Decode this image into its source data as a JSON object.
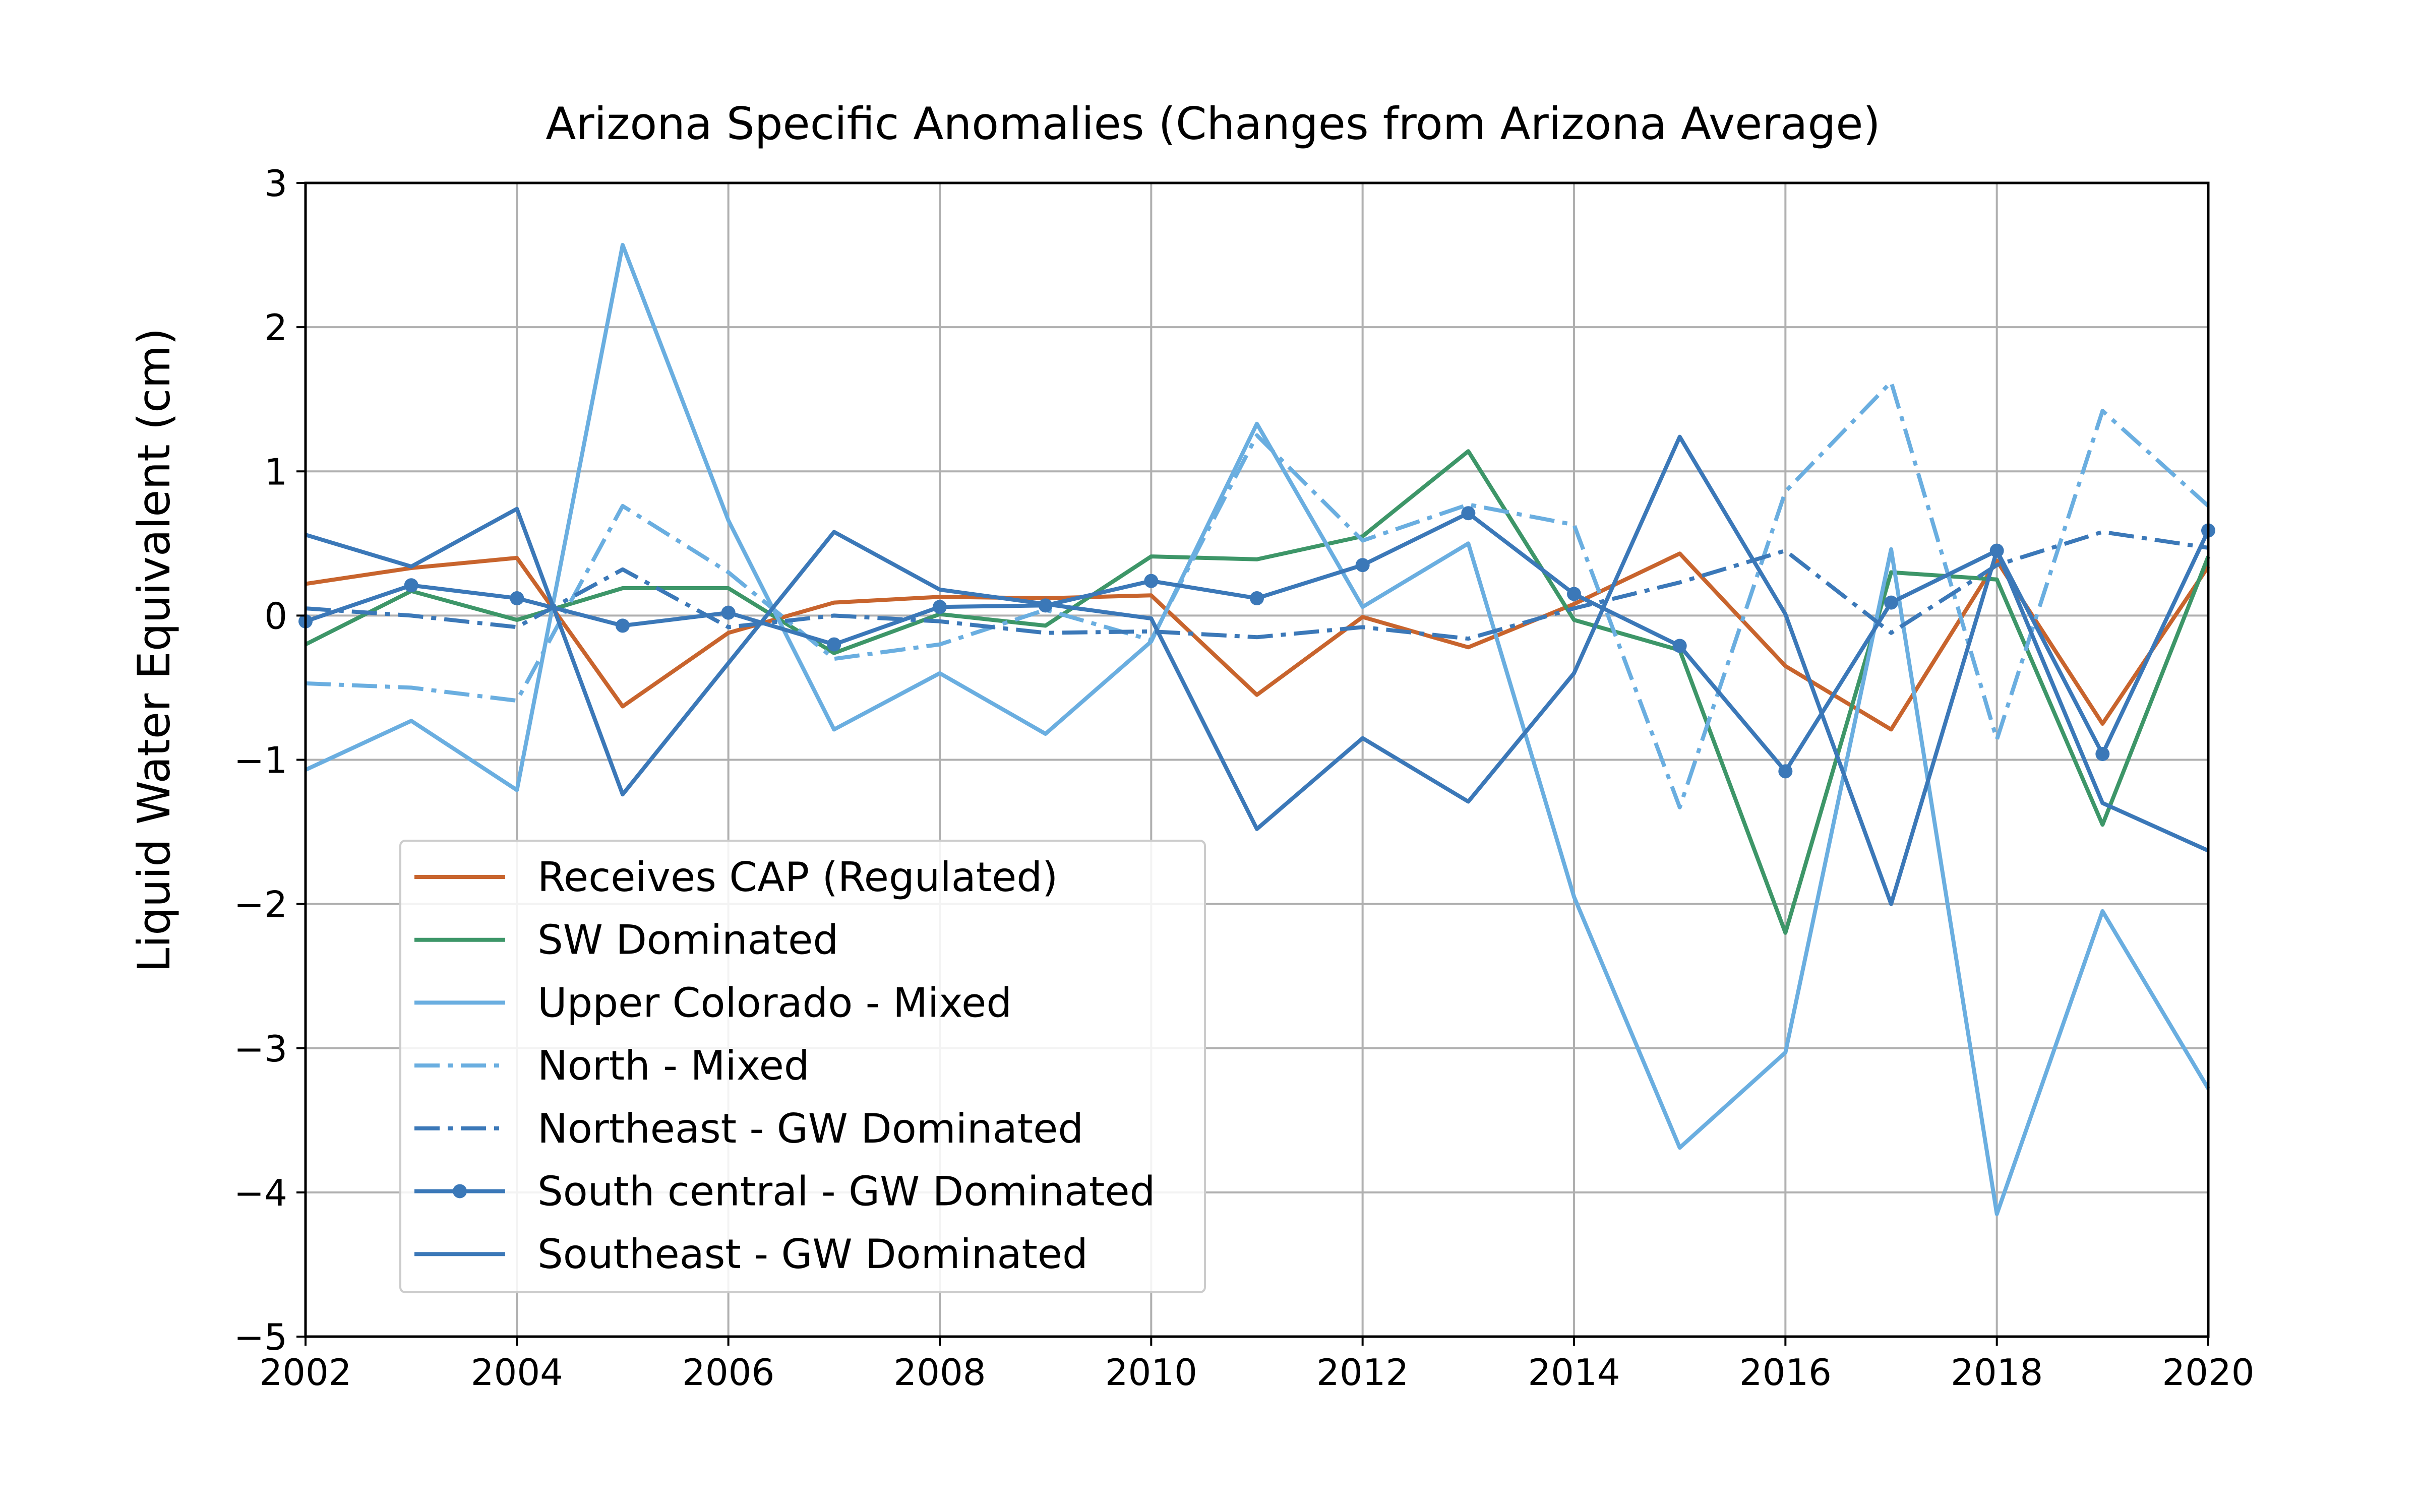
{
  "chart_data": {
    "type": "line",
    "title": "Arizona Specific Anomalies (Changes from Arizona Average)",
    "xlabel": "",
    "ylabel": "Liquid Water Equivalent (cm)",
    "xlim": [
      2002,
      2020
    ],
    "ylim": [
      -5,
      3
    ],
    "xticks": [
      2002,
      2004,
      2006,
      2008,
      2010,
      2012,
      2014,
      2016,
      2018,
      2020
    ],
    "xtick_labels": [
      "2002",
      "2004",
      "2006",
      "2008",
      "2010",
      "2012",
      "2014",
      "2016",
      "2018",
      "2020"
    ],
    "yticks": [
      -5,
      -4,
      -3,
      -2,
      -1,
      0,
      1,
      2,
      3
    ],
    "ytick_labels": [
      "−5",
      "−4",
      "−3",
      "−2",
      "−1",
      "0",
      "1",
      "2",
      "3"
    ],
    "grid": true,
    "legend_position": "lower-left",
    "x": [
      2002,
      2003,
      2004,
      2005,
      2006,
      2007,
      2008,
      2009,
      2010,
      2011,
      2012,
      2013,
      2014,
      2015,
      2016,
      2017,
      2018,
      2019,
      2020
    ],
    "series": [
      {
        "name": "Receives CAP (Regulated)",
        "color": "#c8642d",
        "style": "solid",
        "marker": "none",
        "values": [
          0.22,
          0.33,
          0.4,
          -0.63,
          -0.12,
          0.09,
          0.13,
          0.12,
          0.14,
          -0.55,
          -0.01,
          -0.22,
          0.08,
          0.43,
          -0.35,
          -0.79,
          0.38,
          -0.75,
          0.34
        ]
      },
      {
        "name": "SW Dominated",
        "color": "#3d9668",
        "style": "solid",
        "marker": "none",
        "values": [
          -0.2,
          0.17,
          -0.03,
          0.19,
          0.19,
          -0.26,
          0.01,
          -0.07,
          0.41,
          0.39,
          0.55,
          1.14,
          -0.03,
          -0.24,
          -2.2,
          0.3,
          0.25,
          -1.45,
          0.41
        ]
      },
      {
        "name": "Upper Colorado - Mixed",
        "color": "#6aaee0",
        "style": "solid",
        "marker": "none",
        "values": [
          -1.07,
          -0.73,
          -1.21,
          2.57,
          0.66,
          -0.79,
          -0.4,
          -0.82,
          -0.18,
          1.33,
          0.06,
          0.5,
          -1.95,
          -3.69,
          -3.03,
          0.46,
          -4.15,
          -2.05,
          -3.28
        ]
      },
      {
        "name": "North - Mixed",
        "color": "#6aaee0",
        "style": "dashdot",
        "marker": "none",
        "values": [
          -0.47,
          -0.5,
          -0.59,
          0.76,
          0.3,
          -0.3,
          -0.2,
          0.04,
          -0.17,
          1.25,
          0.52,
          0.77,
          0.63,
          -1.33,
          0.86,
          1.62,
          -0.86,
          1.42,
          0.76
        ]
      },
      {
        "name": "Northeast - GW Dominated",
        "color": "#3b78b8",
        "style": "dashdot",
        "marker": "none",
        "values": [
          0.05,
          0.0,
          -0.08,
          0.32,
          -0.08,
          0.0,
          -0.04,
          -0.12,
          -0.11,
          -0.15,
          -0.08,
          -0.16,
          0.05,
          0.23,
          0.45,
          -0.12,
          0.35,
          0.58,
          0.47
        ]
      },
      {
        "name": "South central - GW Dominated",
        "color": "#3b78b8",
        "style": "solid",
        "marker": "circle",
        "values": [
          -0.04,
          0.21,
          0.12,
          -0.07,
          0.02,
          -0.2,
          0.06,
          0.07,
          0.24,
          0.12,
          0.35,
          0.71,
          0.15,
          -0.21,
          -1.08,
          0.09,
          0.45,
          -0.96,
          0.59
        ]
      },
      {
        "name": "Southeast - GW Dominated",
        "color": "#3b78b8",
        "style": "solid",
        "marker": "none",
        "values": [
          0.56,
          0.34,
          0.74,
          -1.24,
          -0.33,
          0.58,
          0.18,
          0.08,
          -0.02,
          -1.48,
          -0.85,
          -1.29,
          -0.4,
          1.24,
          0.01,
          -2.0,
          0.45,
          -1.3,
          -1.63
        ]
      }
    ]
  }
}
